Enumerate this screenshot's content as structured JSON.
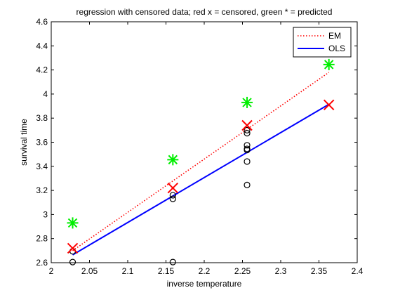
{
  "chart_data": {
    "type": "scatter",
    "title": "regression with censored data; red x = censored, green * = predicted",
    "xlabel": "inverse temperature",
    "ylabel": "survival time",
    "xlim": [
      2,
      2.4
    ],
    "ylim": [
      2.6,
      4.6
    ],
    "xticks": [
      "2",
      "2.05",
      "2.1",
      "2.15",
      "2.2",
      "2.25",
      "2.3",
      "2.35",
      "2.4"
    ],
    "yticks": [
      "2.6",
      "2.8",
      "3",
      "3.2",
      "3.4",
      "3.6",
      "3.8",
      "4",
      "4.2",
      "4.4",
      "4.6"
    ],
    "grid": false,
    "legend_position": "top-right",
    "series": [
      {
        "name": "EM",
        "kind": "line",
        "style": "dotted",
        "color": "#ff0000",
        "x": [
          2.028,
          2.363
        ],
        "y": [
          2.7,
          4.18
        ]
      },
      {
        "name": "OLS",
        "kind": "line",
        "style": "solid",
        "color": "#0000ff",
        "x": [
          2.028,
          2.363
        ],
        "y": [
          2.665,
          3.915
        ]
      },
      {
        "kind": "marker",
        "marker": "o",
        "color": "#000000",
        "x": [
          2.028,
          2.028,
          2.159,
          2.159,
          2.159,
          2.256,
          2.256,
          2.256,
          2.256,
          2.256,
          2.256,
          2.256
        ],
        "y": [
          2.695,
          2.605,
          3.16,
          3.13,
          2.605,
          3.7,
          3.575,
          3.545,
          3.535,
          3.44,
          3.245,
          3.675
        ]
      },
      {
        "kind": "marker",
        "marker": "x",
        "color": "#ff0000",
        "x": [
          2.028,
          2.159,
          2.256,
          2.363
        ],
        "y": [
          2.72,
          3.22,
          3.74,
          3.91
        ]
      },
      {
        "kind": "marker",
        "marker": "*",
        "color": "#00ee00",
        "x": [
          2.028,
          2.159,
          2.256,
          2.363
        ],
        "y": [
          2.93,
          3.455,
          3.93,
          4.245
        ]
      }
    ]
  }
}
